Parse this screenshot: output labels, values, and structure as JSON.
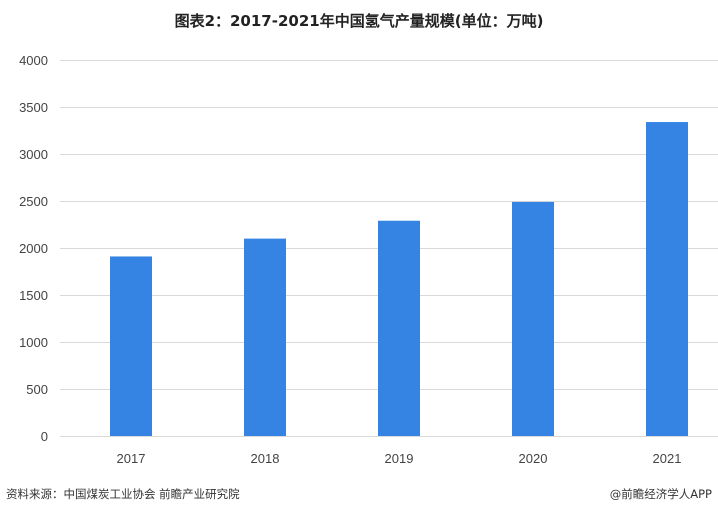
{
  "title": "图表2：2017-2021年中国氢气产量规模(单位：万吨)",
  "source": "资料来源：中国煤炭工业协会 前瞻产业研究院",
  "credit": "@前瞻经济学人APP",
  "watermark": "前瞻产业研究院",
  "colors": {
    "bar": "#3584e4",
    "grid": "#d9d9d9"
  },
  "chart_data": {
    "type": "bar",
    "title": "图表2：2017-2021年中国氢气产量规模(单位：万吨)",
    "categories": [
      "2017",
      "2018",
      "2019",
      "2020",
      "2021"
    ],
    "values": [
      1910,
      2100,
      2290,
      2490,
      3340
    ],
    "ylim": [
      0,
      4000
    ],
    "yticks": [
      0,
      500,
      1000,
      1500,
      2000,
      2500,
      3000,
      3500,
      4000
    ],
    "xlabel": "",
    "ylabel": "",
    "grid": true,
    "legend": "none"
  }
}
